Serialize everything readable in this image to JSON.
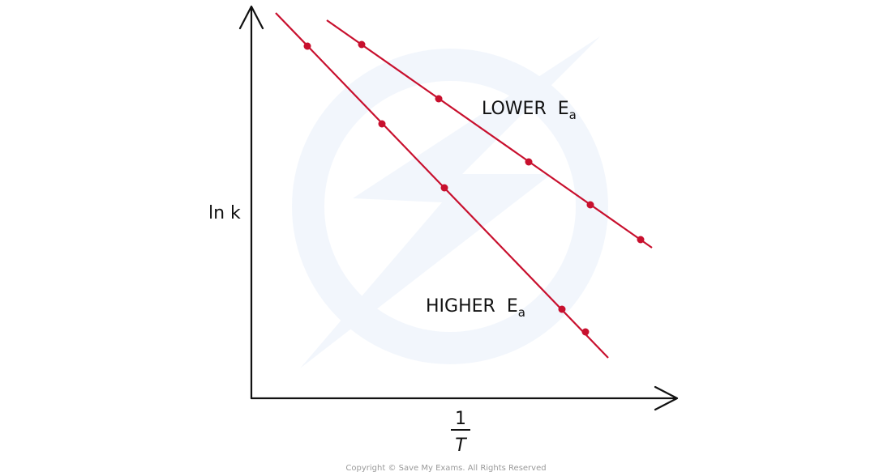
{
  "axes": {
    "y_label": "ln k",
    "x_label": {
      "numerator": "1",
      "denominator": "T"
    }
  },
  "lines": [
    {
      "label": "LOWER",
      "symbol": "E",
      "subscript": "a"
    },
    {
      "label": "HIGHER",
      "symbol": "E",
      "subscript": "a"
    }
  ],
  "footer": {
    "copyright": "Copyright © Save My Exams. All Rights Reserved"
  }
}
